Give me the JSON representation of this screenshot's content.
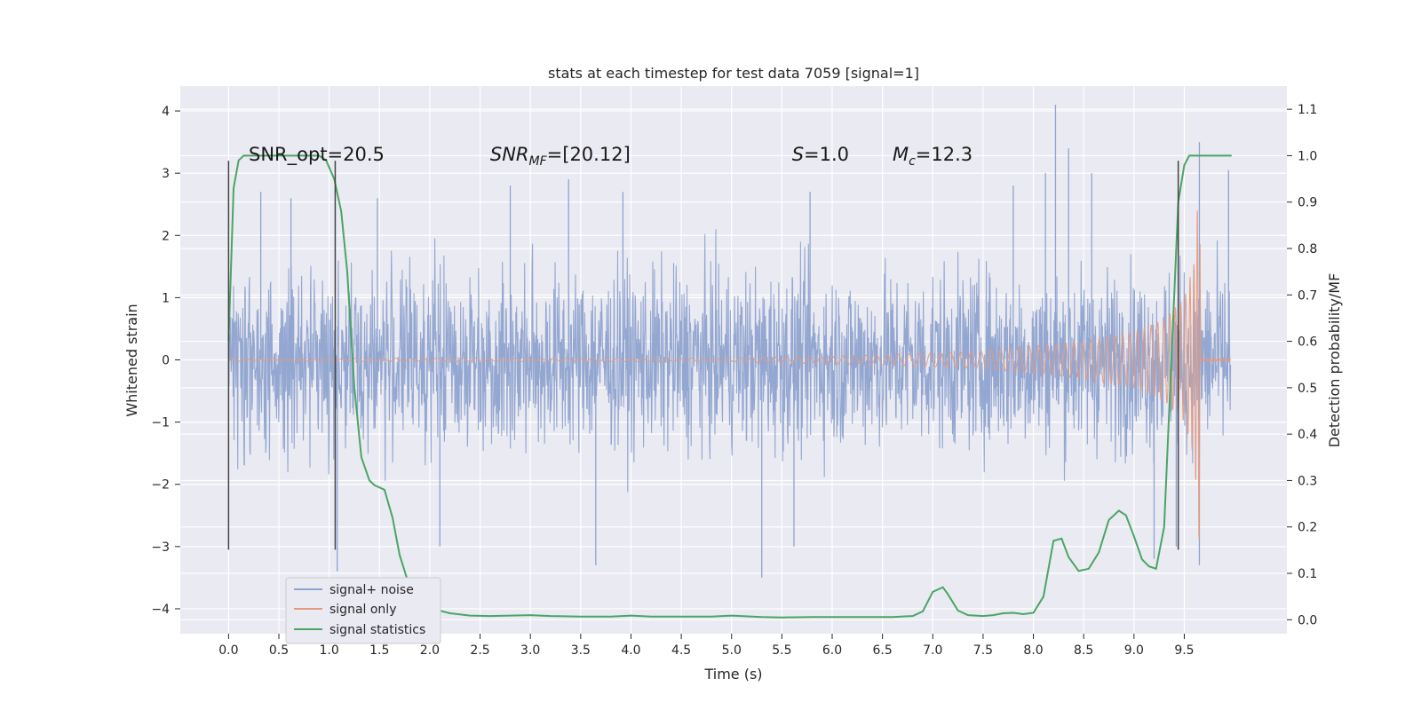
{
  "chart_data": {
    "type": "line",
    "title": "stats at each timestep for test data 7059 [signal=1]",
    "xlabel": "Time (s)",
    "ylabel": "Whitened strain",
    "y2label": "Detection probability/MF",
    "xlim": [
      -0.48,
      10.52
    ],
    "ylim": [
      -4.4,
      4.4
    ],
    "y2lim": [
      -0.03,
      1.15
    ],
    "x_ticks": [
      0.0,
      0.5,
      1.0,
      1.5,
      2.0,
      2.5,
      3.0,
      3.5,
      4.0,
      4.5,
      5.0,
      5.5,
      6.0,
      6.5,
      7.0,
      7.5,
      8.0,
      8.5,
      9.0,
      9.5
    ],
    "x_tick_labels": [
      "0.0",
      "0.5",
      "1.0",
      "1.5",
      "2.0",
      "2.5",
      "3.0",
      "3.5",
      "4.0",
      "4.5",
      "5.0",
      "5.5",
      "6.0",
      "6.5",
      "7.0",
      "7.5",
      "8.0",
      "8.5",
      "9.0",
      "9.5"
    ],
    "y_ticks": [
      -4,
      -3,
      -2,
      -1,
      0,
      1,
      2,
      3,
      4
    ],
    "y_tick_labels": [
      "−4",
      "−3",
      "−2",
      "−1",
      "0",
      "1",
      "2",
      "3",
      "4"
    ],
    "y2_ticks": [
      0.0,
      0.1,
      0.2,
      0.3,
      0.4,
      0.5,
      0.6,
      0.7,
      0.8,
      0.9,
      1.0,
      1.1
    ],
    "y2_tick_labels": [
      "0.0",
      "0.1",
      "0.2",
      "0.3",
      "0.4",
      "0.5",
      "0.6",
      "0.7",
      "0.8",
      "0.9",
      "1.0",
      "1.1"
    ],
    "grid": true,
    "legend_position": "lower-left",
    "annotations": [
      {
        "x": 0.2,
        "y": 3.2,
        "text": "SNR_opt=20.5"
      },
      {
        "x": 2.6,
        "y": 3.2,
        "text": "SNR_MF=[20.12]"
      },
      {
        "x": 5.6,
        "y": 3.2,
        "text": "S=1.0"
      },
      {
        "x": 6.6,
        "y": 3.2,
        "text": "M_c=12.3"
      }
    ],
    "vlines": [
      {
        "x": 0.0,
        "ymin": -3.05,
        "ymax": 3.2
      },
      {
        "x": 1.06,
        "ymin": -3.05,
        "ymax": 3.2
      },
      {
        "x": 9.44,
        "ymin": -3.05,
        "ymax": 3.2
      }
    ],
    "series": [
      {
        "name": "signal+ noise",
        "color": "#8fa3cf",
        "style": "dense noise trace",
        "x_range": [
          0.0,
          9.96
        ],
        "typical_amplitude": 1.3,
        "peaks": [
          {
            "x": 0.32,
            "y": 2.7
          },
          {
            "x": 0.62,
            "y": 2.6
          },
          {
            "x": 1.08,
            "y": -3.4
          },
          {
            "x": 1.48,
            "y": 2.6
          },
          {
            "x": 2.1,
            "y": -3.0
          },
          {
            "x": 2.8,
            "y": 2.8
          },
          {
            "x": 3.38,
            "y": 2.9
          },
          {
            "x": 3.65,
            "y": -3.3
          },
          {
            "x": 3.92,
            "y": 2.7
          },
          {
            "x": 5.3,
            "y": -3.5
          },
          {
            "x": 5.78,
            "y": 2.7
          },
          {
            "x": 5.62,
            "y": -3.0
          },
          {
            "x": 7.8,
            "y": 2.8
          },
          {
            "x": 8.12,
            "y": 3.0
          },
          {
            "x": 8.22,
            "y": 4.1
          },
          {
            "x": 8.35,
            "y": 3.4
          },
          {
            "x": 8.58,
            "y": 3.0
          },
          {
            "x": 9.2,
            "y": -3.2
          },
          {
            "x": 9.42,
            "y": -3.0
          },
          {
            "x": 9.65,
            "y": 3.5
          },
          {
            "x": 9.65,
            "y": -3.3
          },
          {
            "x": 9.94,
            "y": 3.05
          }
        ]
      },
      {
        "name": "signal only",
        "color": "#e39a80",
        "style": "chirp",
        "x_range": [
          0.0,
          9.96
        ],
        "envelope": [
          {
            "x": 0.0,
            "y": 0.02
          },
          {
            "x": 5.0,
            "y": 0.03
          },
          {
            "x": 6.5,
            "y": 0.08
          },
          {
            "x": 7.5,
            "y": 0.14
          },
          {
            "x": 8.5,
            "y": 0.3
          },
          {
            "x": 9.0,
            "y": 0.45
          },
          {
            "x": 9.3,
            "y": 0.65
          },
          {
            "x": 9.5,
            "y": 1.0
          },
          {
            "x": 9.6,
            "y": 1.6
          },
          {
            "x": 9.65,
            "y": 3.1
          }
        ]
      },
      {
        "name": "signal statistics",
        "color": "#4aa564",
        "axis": "right",
        "x": [
          0.0,
          0.05,
          0.1,
          0.15,
          0.25,
          0.4,
          0.6,
          0.8,
          0.9,
          0.97,
          1.05,
          1.12,
          1.18,
          1.25,
          1.32,
          1.4,
          1.45,
          1.55,
          1.63,
          1.7,
          1.8,
          1.9,
          2.0,
          2.2,
          2.4,
          2.6,
          2.8,
          3.0,
          3.2,
          3.5,
          3.8,
          4.0,
          4.2,
          4.5,
          4.8,
          5.0,
          5.3,
          5.5,
          5.8,
          6.0,
          6.3,
          6.6,
          6.8,
          6.9,
          7.0,
          7.1,
          7.15,
          7.25,
          7.35,
          7.5,
          7.6,
          7.7,
          7.8,
          7.9,
          8.0,
          8.1,
          8.2,
          8.28,
          8.35,
          8.45,
          8.55,
          8.65,
          8.75,
          8.85,
          8.92,
          9.0,
          9.08,
          9.15,
          9.22,
          9.3,
          9.36,
          9.44,
          9.5,
          9.55,
          9.62,
          9.7,
          9.8,
          9.9,
          9.97
        ],
        "y": [
          0.6,
          0.93,
          0.99,
          1.0,
          1.0,
          1.0,
          1.0,
          1.0,
          1.0,
          0.99,
          0.95,
          0.88,
          0.75,
          0.5,
          0.35,
          0.3,
          0.29,
          0.28,
          0.22,
          0.14,
          0.07,
          0.035,
          0.025,
          0.014,
          0.009,
          0.008,
          0.009,
          0.01,
          0.008,
          0.007,
          0.007,
          0.009,
          0.007,
          0.007,
          0.007,
          0.009,
          0.006,
          0.005,
          0.006,
          0.006,
          0.006,
          0.006,
          0.008,
          0.018,
          0.06,
          0.07,
          0.055,
          0.02,
          0.01,
          0.008,
          0.01,
          0.014,
          0.015,
          0.012,
          0.015,
          0.05,
          0.17,
          0.175,
          0.135,
          0.105,
          0.11,
          0.145,
          0.215,
          0.235,
          0.225,
          0.18,
          0.13,
          0.115,
          0.11,
          0.2,
          0.5,
          0.9,
          0.98,
          1.0,
          1.0,
          1.0,
          1.0,
          1.0,
          1.0
        ]
      }
    ]
  }
}
